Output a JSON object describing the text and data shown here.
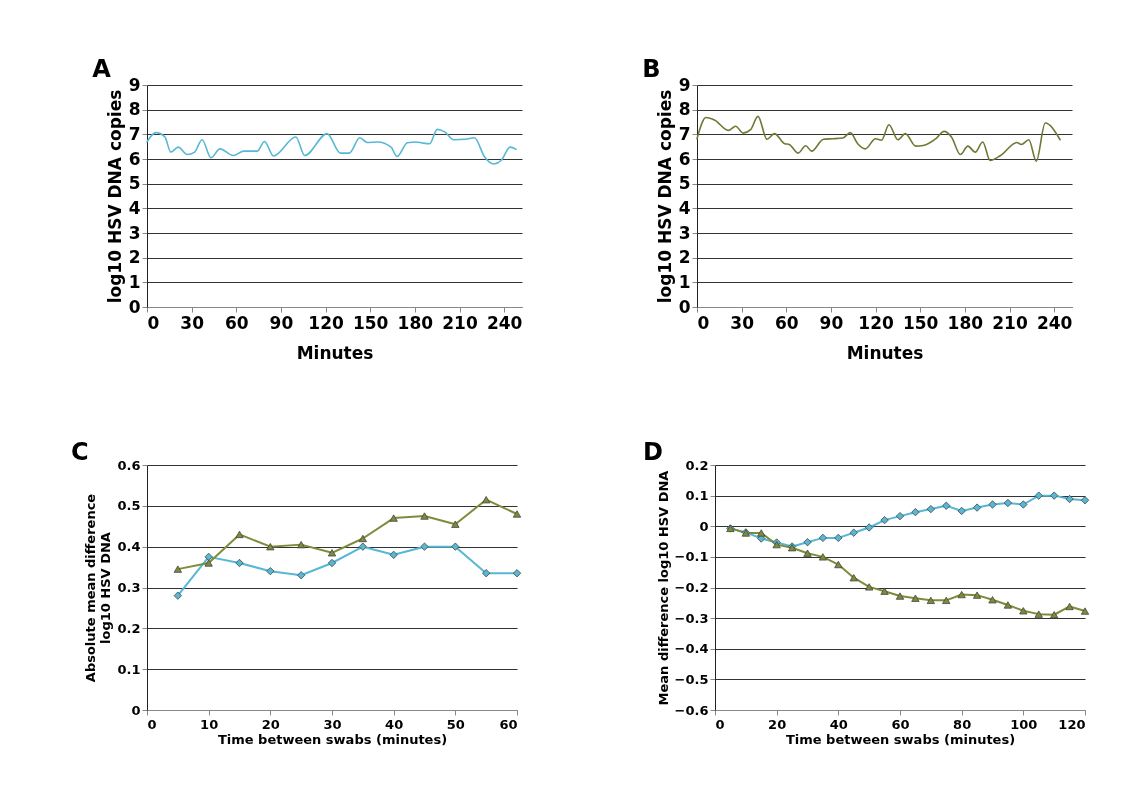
{
  "chart_data": [
    {
      "type": "line",
      "title": "A",
      "xlabel": "Minutes",
      "ylabel": "log10 HSV DNA copies",
      "xlim": [
        0,
        252
      ],
      "xticks": [
        0,
        30,
        60,
        90,
        120,
        150,
        180,
        210,
        240
      ],
      "ylim": [
        0,
        9
      ],
      "yticks": [
        0,
        1,
        2,
        3,
        4,
        5,
        6,
        7,
        8,
        9
      ],
      "grid": "y",
      "series": [
        {
          "color": "#56b8d4",
          "x": [
            0,
            6,
            12,
            16,
            21,
            27,
            32,
            37,
            43,
            49,
            58,
            65,
            74,
            79,
            85,
            100,
            106,
            121,
            130,
            136,
            143,
            148,
            155,
            164,
            168,
            175,
            181,
            185,
            190,
            195,
            200,
            206,
            214,
            220,
            227,
            233,
            238,
            244,
            248
          ],
          "values": [
            6.7,
            7.07,
            6.9,
            6.28,
            6.48,
            6.18,
            6.28,
            6.78,
            6.05,
            6.41,
            6.14,
            6.32,
            6.32,
            6.71,
            6.12,
            6.89,
            6.14,
            7.03,
            6.24,
            6.24,
            6.86,
            6.67,
            6.69,
            6.48,
            6.1,
            6.66,
            6.69,
            6.65,
            6.62,
            7.2,
            7.1,
            6.78,
            6.8,
            6.86,
            6.07,
            5.8,
            5.94,
            6.48,
            6.39
          ]
        }
      ]
    },
    {
      "type": "line",
      "title": "B",
      "xlabel": "Minutes",
      "ylabel": "log10 HSV DNA copies",
      "xlim": [
        0,
        252
      ],
      "xticks": [
        0,
        30,
        60,
        90,
        120,
        150,
        180,
        210,
        240
      ],
      "ylim": [
        0,
        9
      ],
      "yticks": [
        0,
        1,
        2,
        3,
        4,
        5,
        6,
        7,
        8,
        9
      ],
      "grid": "y",
      "series": [
        {
          "color": "#6b7a35",
          "x": [
            0,
            6,
            12,
            21,
            26,
            31,
            36,
            41,
            47,
            52,
            59,
            62,
            68,
            73,
            77,
            85,
            91,
            98,
            103,
            108,
            113,
            120,
            124,
            129,
            135,
            140,
            147,
            152,
            161,
            166,
            171,
            177,
            182,
            187,
            192,
            197,
            204,
            215,
            218,
            223,
            228,
            234,
            244
          ],
          "values": [
            6.82,
            7.68,
            7.57,
            7.16,
            7.33,
            7.05,
            7.19,
            7.73,
            6.8,
            7.03,
            6.62,
            6.59,
            6.24,
            6.54,
            6.32,
            6.8,
            6.82,
            6.85,
            7.07,
            6.62,
            6.41,
            6.82,
            6.76,
            7.39,
            6.78,
            7.03,
            6.52,
            6.55,
            6.85,
            7.12,
            6.89,
            6.18,
            6.52,
            6.28,
            6.69,
            5.94,
            6.14,
            6.67,
            6.59,
            6.78,
            5.91,
            7.46,
            6.78
          ]
        }
      ]
    },
    {
      "type": "line",
      "title": "C",
      "xlabel": "Time between swabs (minutes)",
      "ylabel": "Absolute mean difference log10 HSV DNA",
      "xlim": [
        0,
        60
      ],
      "xticks": [
        0,
        10,
        20,
        30,
        40,
        50,
        60
      ],
      "ylim": [
        0,
        0.6
      ],
      "yticks": [
        0,
        0.1,
        0.2,
        0.3,
        0.4,
        0.5,
        0.6
      ],
      "grid": "y",
      "x": [
        5,
        10,
        15,
        20,
        25,
        30,
        35,
        40,
        45,
        50,
        55,
        60
      ],
      "series": [
        {
          "color": "#56b8d4",
          "marker": "diamond",
          "values": [
            0.28,
            0.375,
            0.36,
            0.34,
            0.33,
            0.36,
            0.4,
            0.38,
            0.4,
            0.4,
            0.335,
            0.335
          ]
        },
        {
          "color": "#7d8c3a",
          "marker": "triangle",
          "values": [
            0.345,
            0.36,
            0.43,
            0.4,
            0.405,
            0.385,
            0.42,
            0.47,
            0.475,
            0.455,
            0.515,
            0.48
          ]
        }
      ]
    },
    {
      "type": "line",
      "title": "D",
      "xlabel": "Time between swabs (minutes)",
      "ylabel": "Mean difference log10 HSV DNA",
      "xlim": [
        0,
        120
      ],
      "xticks": [
        0,
        20,
        40,
        60,
        80,
        100,
        120
      ],
      "ylim": [
        -0.6,
        0.2
      ],
      "yticks": [
        -0.6,
        -0.5,
        -0.4,
        -0.3,
        -0.2,
        -0.1,
        0,
        0.1,
        0.2
      ],
      "grid": "y",
      "x": [
        5,
        10,
        15,
        20,
        25,
        30,
        35,
        40,
        45,
        50,
        55,
        60,
        65,
        70,
        75,
        80,
        85,
        90,
        95,
        100,
        105,
        110,
        115,
        120
      ],
      "series": [
        {
          "color": "#56b8d4",
          "marker": "diamond",
          "values": [
            -0.007,
            -0.02,
            -0.04,
            -0.053,
            -0.066,
            -0.052,
            -0.038,
            -0.038,
            -0.021,
            -0.004,
            0.02,
            0.033,
            0.046,
            0.056,
            0.067,
            0.05,
            0.061,
            0.071,
            0.076,
            0.071,
            0.1,
            0.1,
            0.089,
            0.085
          ]
        },
        {
          "color": "#7d8c3a",
          "marker": "triangle",
          "values": [
            -0.007,
            -0.022,
            -0.022,
            -0.06,
            -0.07,
            -0.088,
            -0.1,
            -0.125,
            -0.168,
            -0.198,
            -0.212,
            -0.228,
            -0.235,
            -0.242,
            -0.242,
            -0.223,
            -0.225,
            -0.24,
            -0.257,
            -0.276,
            -0.287,
            -0.289,
            -0.262,
            -0.277
          ]
        }
      ]
    }
  ]
}
